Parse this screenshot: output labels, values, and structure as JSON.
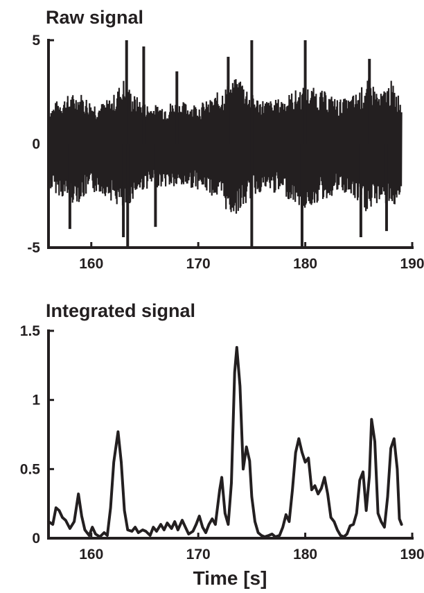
{
  "chart_data": [
    {
      "type": "line",
      "title": "Raw signal",
      "xlabel": "",
      "ylabel": "",
      "xlim": [
        156,
        190
      ],
      "ylim": [
        -5,
        5
      ],
      "xticks": [
        160,
        170,
        180,
        190
      ],
      "yticks": [
        -5,
        0,
        5
      ],
      "xtick_labels": [
        "160",
        "170",
        "180",
        "190"
      ],
      "ytick_labels": [
        "-5",
        "0",
        "5"
      ],
      "grid": false,
      "color": "#231f20",
      "x_range": [
        156,
        189
      ],
      "envelope_upper": [
        [
          156,
          1.7
        ],
        [
          157,
          2.2
        ],
        [
          158,
          2.4
        ],
        [
          159,
          2.5
        ],
        [
          160,
          2.1
        ],
        [
          161,
          2.0
        ],
        [
          162,
          2.3
        ],
        [
          163,
          3.2
        ],
        [
          164,
          2.4
        ],
        [
          165,
          2.0
        ],
        [
          166,
          1.9
        ],
        [
          167,
          2.0
        ],
        [
          168,
          2.1
        ],
        [
          169,
          2.0
        ],
        [
          170,
          2.0
        ],
        [
          171,
          2.1
        ],
        [
          172,
          2.6
        ],
        [
          173,
          3.0
        ],
        [
          174,
          3.3
        ],
        [
          175,
          2.4
        ],
        [
          176,
          2.2
        ],
        [
          177,
          2.1
        ],
        [
          178,
          2.3
        ],
        [
          179,
          2.6
        ],
        [
          180,
          2.8
        ],
        [
          181,
          2.7
        ],
        [
          182,
          2.5
        ],
        [
          183,
          2.2
        ],
        [
          184,
          2.2
        ],
        [
          185,
          2.6
        ],
        [
          186,
          3.2
        ],
        [
          187,
          2.4
        ],
        [
          188,
          3.1
        ],
        [
          189,
          2.2
        ]
      ],
      "envelope_lower": [
        [
          156,
          -2.2
        ],
        [
          157,
          -2.5
        ],
        [
          158,
          -2.9
        ],
        [
          159,
          -2.8
        ],
        [
          160,
          -2.4
        ],
        [
          161,
          -2.4
        ],
        [
          162,
          -2.8
        ],
        [
          163,
          -3.4
        ],
        [
          164,
          -2.6
        ],
        [
          165,
          -2.2
        ],
        [
          166,
          -2.1
        ],
        [
          167,
          -2.1
        ],
        [
          168,
          -2.2
        ],
        [
          169,
          -2.1
        ],
        [
          170,
          -2.2
        ],
        [
          171,
          -2.4
        ],
        [
          172,
          -2.8
        ],
        [
          173,
          -3.5
        ],
        [
          174,
          -3.3
        ],
        [
          175,
          -2.6
        ],
        [
          176,
          -2.3
        ],
        [
          177,
          -2.4
        ],
        [
          178,
          -2.5
        ],
        [
          179,
          -2.9
        ],
        [
          180,
          -3.2
        ],
        [
          181,
          -2.9
        ],
        [
          182,
          -2.7
        ],
        [
          183,
          -2.4
        ],
        [
          184,
          -2.5
        ],
        [
          185,
          -3.0
        ],
        [
          186,
          -3.5
        ],
        [
          187,
          -2.7
        ],
        [
          188,
          -3.2
        ],
        [
          189,
          -2.5
        ]
      ],
      "spikes": [
        {
          "x": 163.3,
          "y": 5.0
        },
        {
          "x": 163.0,
          "y": -4.5
        },
        {
          "x": 163.4,
          "y": -5.0
        },
        {
          "x": 164.9,
          "y": 4.7
        },
        {
          "x": 172.8,
          "y": 4.2
        },
        {
          "x": 175.0,
          "y": 5.0
        },
        {
          "x": 175.0,
          "y": -5.0
        },
        {
          "x": 179.7,
          "y": -5.0
        },
        {
          "x": 180.0,
          "y": 5.0
        },
        {
          "x": 158.0,
          "y": -4.1
        },
        {
          "x": 185.2,
          "y": -4.5
        },
        {
          "x": 186.0,
          "y": 4.1
        },
        {
          "x": 166.0,
          "y": -4.0
        },
        {
          "x": 168.0,
          "y": 3.5
        },
        {
          "x": 187.6,
          "y": -4.2
        }
      ]
    },
    {
      "type": "line",
      "title": "Integrated signal",
      "xlabel": "Time [s]",
      "ylabel": "",
      "xlim": [
        156,
        190
      ],
      "ylim": [
        0,
        1.5
      ],
      "xticks": [
        160,
        170,
        180,
        190
      ],
      "yticks": [
        0,
        0.5,
        1,
        1.5
      ],
      "xtick_labels": [
        "160",
        "170",
        "180",
        "190"
      ],
      "ytick_labels": [
        "0",
        "0.5",
        "1",
        "1.5"
      ],
      "grid": false,
      "color": "#231f20",
      "points": [
        [
          156.0,
          0.12
        ],
        [
          156.4,
          0.1
        ],
        [
          156.7,
          0.22
        ],
        [
          157.0,
          0.2
        ],
        [
          157.3,
          0.15
        ],
        [
          157.6,
          0.13
        ],
        [
          158.0,
          0.07
        ],
        [
          158.4,
          0.12
        ],
        [
          158.8,
          0.32
        ],
        [
          159.1,
          0.16
        ],
        [
          159.4,
          0.06
        ],
        [
          159.8,
          0.02
        ],
        [
          160.1,
          0.08
        ],
        [
          160.4,
          0.03
        ],
        [
          160.8,
          0.01
        ],
        [
          161.2,
          0.04
        ],
        [
          161.5,
          0.02
        ],
        [
          161.8,
          0.22
        ],
        [
          162.1,
          0.55
        ],
        [
          162.5,
          0.77
        ],
        [
          162.8,
          0.55
        ],
        [
          163.1,
          0.2
        ],
        [
          163.4,
          0.06
        ],
        [
          163.8,
          0.05
        ],
        [
          164.1,
          0.08
        ],
        [
          164.4,
          0.04
        ],
        [
          164.8,
          0.06
        ],
        [
          165.1,
          0.05
        ],
        [
          165.5,
          0.02
        ],
        [
          165.8,
          0.08
        ],
        [
          166.1,
          0.05
        ],
        [
          166.5,
          0.1
        ],
        [
          166.8,
          0.06
        ],
        [
          167.1,
          0.11
        ],
        [
          167.5,
          0.07
        ],
        [
          167.8,
          0.12
        ],
        [
          168.1,
          0.06
        ],
        [
          168.5,
          0.13
        ],
        [
          168.8,
          0.08
        ],
        [
          169.1,
          0.03
        ],
        [
          169.5,
          0.05
        ],
        [
          169.8,
          0.1
        ],
        [
          170.1,
          0.16
        ],
        [
          170.4,
          0.08
        ],
        [
          170.7,
          0.04
        ],
        [
          171.0,
          0.1
        ],
        [
          171.3,
          0.14
        ],
        [
          171.6,
          0.1
        ],
        [
          172.0,
          0.35
        ],
        [
          172.2,
          0.44
        ],
        [
          172.5,
          0.18
        ],
        [
          172.8,
          0.1
        ],
        [
          173.1,
          0.4
        ],
        [
          173.4,
          1.2
        ],
        [
          173.6,
          1.38
        ],
        [
          173.9,
          1.1
        ],
        [
          174.2,
          0.5
        ],
        [
          174.5,
          0.66
        ],
        [
          174.8,
          0.56
        ],
        [
          175.0,
          0.3
        ],
        [
          175.3,
          0.12
        ],
        [
          175.6,
          0.04
        ],
        [
          175.9,
          0.02
        ],
        [
          176.2,
          0.01
        ],
        [
          176.6,
          0.02
        ],
        [
          176.9,
          0.03
        ],
        [
          177.2,
          0.01
        ],
        [
          177.6,
          0.02
        ],
        [
          177.9,
          0.08
        ],
        [
          178.2,
          0.17
        ],
        [
          178.5,
          0.12
        ],
        [
          178.8,
          0.35
        ],
        [
          179.1,
          0.62
        ],
        [
          179.4,
          0.72
        ],
        [
          179.7,
          0.62
        ],
        [
          180.0,
          0.55
        ],
        [
          180.3,
          0.58
        ],
        [
          180.6,
          0.35
        ],
        [
          180.9,
          0.38
        ],
        [
          181.2,
          0.32
        ],
        [
          181.5,
          0.36
        ],
        [
          181.8,
          0.44
        ],
        [
          182.1,
          0.32
        ],
        [
          182.4,
          0.15
        ],
        [
          182.7,
          0.12
        ],
        [
          183.0,
          0.06
        ],
        [
          183.3,
          0.02
        ],
        [
          183.6,
          0.01
        ],
        [
          183.9,
          0.03
        ],
        [
          184.2,
          0.09
        ],
        [
          184.5,
          0.1
        ],
        [
          184.8,
          0.18
        ],
        [
          185.1,
          0.42
        ],
        [
          185.4,
          0.48
        ],
        [
          185.7,
          0.2
        ],
        [
          186.0,
          0.45
        ],
        [
          186.2,
          0.86
        ],
        [
          186.5,
          0.7
        ],
        [
          186.8,
          0.18
        ],
        [
          187.1,
          0.12
        ],
        [
          187.4,
          0.08
        ],
        [
          187.7,
          0.3
        ],
        [
          188.0,
          0.65
        ],
        [
          188.3,
          0.72
        ],
        [
          188.6,
          0.5
        ],
        [
          188.8,
          0.14
        ],
        [
          189.0,
          0.1
        ]
      ]
    }
  ]
}
